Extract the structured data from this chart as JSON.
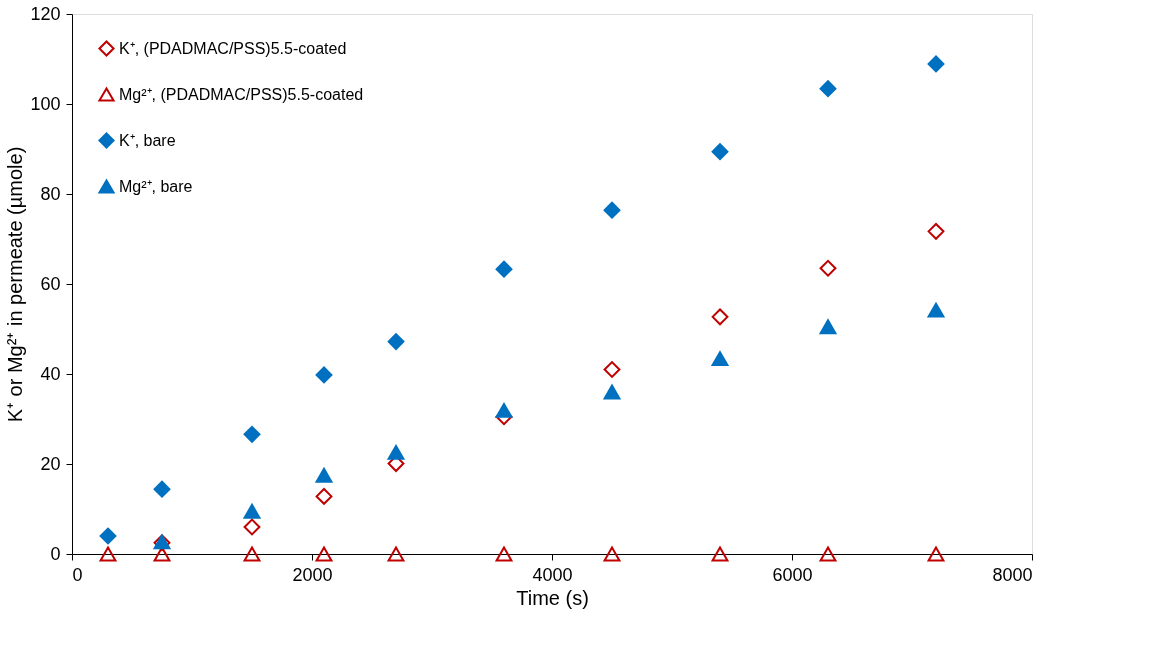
{
  "chart_data": {
    "type": "scatter",
    "xlabel": "Time (s)",
    "ylabel": "K⁺ or Mg²⁺ in permeate (µmole)",
    "xlim": [
      0,
      8000
    ],
    "xticks": [
      0,
      2000,
      4000,
      6000,
      8000
    ],
    "ylim": [
      0,
      120
    ],
    "yticks": [
      0,
      20,
      40,
      60,
      80,
      100,
      120
    ],
    "grid": false,
    "legend": "top left",
    "series": [
      {
        "name": "K⁺, (PDADMAC/PSS)5.5-coated",
        "color": "#c00000",
        "marker": "diamond",
        "x": [
          750,
          1500,
          2100,
          2700,
          3600,
          4500,
          5400,
          6300,
          7200
        ],
        "values": [
          2.5,
          6,
          12.8,
          20.1,
          30.5,
          41,
          52.7,
          63.5,
          71.7
        ]
      },
      {
        "name": "Mg²⁺, (PDADMAC/PSS)5.5-coated",
        "color": "#c00000",
        "marker": "triangle",
        "x": [
          300,
          750,
          1500,
          2100,
          2700,
          3600,
          4500,
          5400,
          6300,
          7200
        ],
        "values": [
          0,
          0,
          0,
          0,
          0,
          0,
          0,
          0,
          0,
          0
        ]
      },
      {
        "name": "K⁺, bare",
        "color": "#0070c0",
        "marker": "diamond",
        "x": [
          300,
          750,
          1500,
          2100,
          2700,
          3600,
          4500,
          5400,
          6300,
          7200
        ],
        "values": [
          4,
          14.4,
          26.6,
          39.8,
          47.2,
          63.3,
          76.4,
          89.4,
          103.4,
          108.9
        ]
      },
      {
        "name": "Mg²⁺, bare",
        "color": "#0070c0",
        "marker": "triangle",
        "x": [
          750,
          1500,
          2100,
          2700,
          3600,
          4500,
          5400,
          6300,
          7200
        ],
        "values": [
          2.7,
          9.5,
          17.5,
          22.6,
          31.9,
          36,
          43.4,
          50.5,
          54.2
        ]
      }
    ]
  }
}
